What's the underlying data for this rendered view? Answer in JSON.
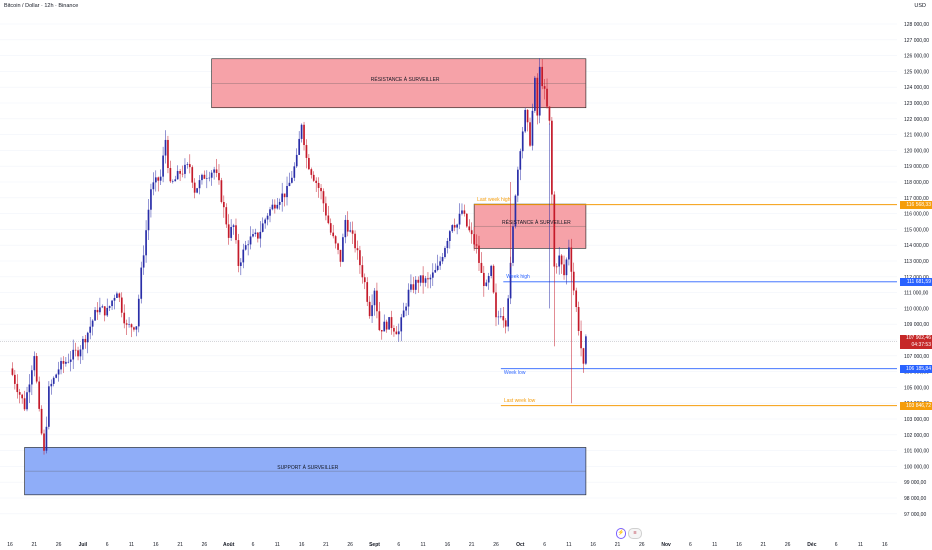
{
  "header": {
    "title": "Bitcoin / Dollar · 12h · Binance",
    "currency": "USD"
  },
  "colors": {
    "bull": "#2a2ea8",
    "bear": "#c41a2a",
    "resistance_fill": "#f6a2a8",
    "resistance_border": "#1a1a1a",
    "support_fill": "#8fadf8",
    "support_border": "#1a1a1a",
    "orange": "#f59d0b",
    "blue": "#2962ff",
    "current_tag": "#c62828",
    "axis_text": "#131722",
    "grid": "#f0f3fa"
  },
  "chart_data": {
    "type": "candlestick",
    "symbol": "Bitcoin / Dollar",
    "interval": "12h",
    "exchange": "Binance",
    "y_axis": {
      "unit": "USD",
      "range": [
        96700,
        128900
      ],
      "ticks": [
        "97 000,00",
        "98 000,00",
        "99 000,00",
        "100 000,00",
        "101 000,00",
        "102 000,00",
        "103 000,00",
        "104 000,00",
        "105 000,00",
        "106 000,00",
        "107 000,00",
        "108 000,00",
        "109 000,00",
        "110 000,00",
        "111 000,00",
        "112 000,00",
        "113 000,00",
        "114 000,00",
        "115 000,00",
        "116 000,00",
        "117 000,00",
        "118 000,00",
        "119 000,00",
        "120 000,00",
        "121 000,00",
        "122 000,00",
        "123 000,00",
        "124 000,00",
        "125 000,00",
        "126 000,00",
        "127 000,00",
        "128 000,00"
      ],
      "tick_values": [
        97000,
        98000,
        99000,
        100000,
        101000,
        102000,
        103000,
        104000,
        105000,
        106000,
        107000,
        108000,
        109000,
        110000,
        111000,
        112000,
        113000,
        114000,
        115000,
        116000,
        117000,
        118000,
        119000,
        120000,
        121000,
        122000,
        123000,
        124000,
        125000,
        126000,
        127000,
        128000
      ]
    },
    "x_axis": {
      "labels": [
        "16",
        "21",
        "26",
        "Juil",
        "6",
        "11",
        "16",
        "21",
        "26",
        "Août",
        "6",
        "11",
        "16",
        "21",
        "26",
        "Sept",
        "6",
        "11",
        "16",
        "21",
        "26",
        "Oct",
        "6",
        "11",
        "16",
        "21",
        "26",
        "Nov",
        "6",
        "11",
        "16",
        "21",
        "26",
        "Déc",
        "6",
        "11",
        "16"
      ],
      "bold": [
        "Juil",
        "Août",
        "Sept",
        "Oct",
        "Nov",
        "Déc"
      ],
      "note": "labels every 5 days; 2 candles per day (12h)"
    },
    "zones": [
      {
        "label": "RÉSISTANCE À SURVEILLER",
        "kind": "resistance",
        "top": 125800,
        "bottom": 122700,
        "start_day": 41.5,
        "end_day": 118.5
      },
      {
        "label": "RÉSISTANCE À SURVEILLER",
        "kind": "resistance",
        "top": 116600,
        "bottom": 113800,
        "start_day": 95.5,
        "end_day": 118.5
      },
      {
        "label": "SUPPORT À SURVEILLER",
        "kind": "support",
        "top": 101200,
        "bottom": 98200,
        "start_day": 3,
        "end_day": 118.5
      }
    ],
    "levels": [
      {
        "label": "Last week high",
        "value": 116568.33,
        "tag": "116 568,33",
        "color": "orange",
        "start_day": 95.5
      },
      {
        "label": "Week high",
        "value": 111681.59,
        "tag": "111 681,59",
        "color": "blue",
        "start_day": 101.5
      },
      {
        "label": "Week low",
        "value": 106185.84,
        "tag": "106 185,84",
        "color": "blue",
        "start_day": 101
      },
      {
        "label": "Last week low",
        "value": 103846.72,
        "tag": "103 846,72",
        "color": "orange",
        "start_day": 101
      }
    ],
    "current": {
      "value": 107902.46,
      "tag": "107 902,46",
      "countdown": "04:37:53"
    },
    "anchors": [
      [
        0,
        106200
      ],
      [
        3,
        103800
      ],
      [
        5,
        107200
      ],
      [
        6,
        103300
      ],
      [
        7,
        100800
      ],
      [
        8,
        104800
      ],
      [
        10,
        106200
      ],
      [
        12,
        106800
      ],
      [
        14,
        107300
      ],
      [
        16,
        108500
      ],
      [
        18,
        110000
      ],
      [
        20,
        109800
      ],
      [
        22,
        111200
      ],
      [
        24,
        108800
      ],
      [
        26,
        109000
      ],
      [
        27,
        112300
      ],
      [
        29,
        117600
      ],
      [
        31,
        118300
      ],
      [
        32,
        120700
      ],
      [
        33,
        117700
      ],
      [
        35,
        118600
      ],
      [
        37,
        119000
      ],
      [
        38,
        117500
      ],
      [
        40,
        118400
      ],
      [
        42,
        118800
      ],
      [
        43,
        117800
      ],
      [
        45,
        114700
      ],
      [
        46,
        115200
      ],
      [
        47,
        112800
      ],
      [
        49,
        114300
      ],
      [
        51,
        114600
      ],
      [
        53,
        116000
      ],
      [
        55,
        116900
      ],
      [
        57,
        117400
      ],
      [
        59,
        119400
      ],
      [
        60,
        121800
      ],
      [
        61,
        119500
      ],
      [
        62,
        118700
      ],
      [
        64,
        117300
      ],
      [
        66,
        114800
      ],
      [
        68,
        113100
      ],
      [
        69,
        115600
      ],
      [
        71,
        114000
      ],
      [
        73,
        111600
      ],
      [
        74,
        109800
      ],
      [
        75,
        111300
      ],
      [
        76,
        108700
      ],
      [
        78,
        109100
      ],
      [
        80,
        108500
      ],
      [
        82,
        111000
      ],
      [
        84,
        111800
      ],
      [
        86,
        111700
      ],
      [
        88,
        112500
      ],
      [
        90,
        114500
      ],
      [
        91,
        115500
      ],
      [
        92,
        115300
      ],
      [
        93,
        116200
      ],
      [
        94,
        115200
      ],
      [
        96,
        113800
      ],
      [
        97,
        112100
      ],
      [
        98,
        111300
      ],
      [
        99,
        112400
      ],
      [
        100,
        109200
      ],
      [
        101,
        109800
      ],
      [
        102,
        109200
      ],
      [
        103,
        112600
      ],
      [
        104,
        117400
      ],
      [
        105,
        120300
      ],
      [
        106,
        122300
      ],
      [
        107,
        120600
      ],
      [
        108,
        124300
      ],
      [
        108.5,
        122200
      ],
      [
        109,
        125100
      ],
      [
        110,
        123600
      ],
      [
        111,
        121700
      ],
      [
        112,
        112600
      ],
      [
        113,
        113200
      ],
      [
        114,
        112100
      ],
      [
        115,
        114000
      ],
      [
        116,
        111200
      ],
      [
        117,
        108800
      ],
      [
        118,
        106200
      ],
      [
        118.5,
        107900
      ]
    ],
    "spikes": [
      [
        103,
        118000,
        "down"
      ],
      [
        111,
        110000,
        "up"
      ],
      [
        112,
        107600,
        "down"
      ],
      [
        115.5,
        104000,
        "down"
      ]
    ]
  }
}
